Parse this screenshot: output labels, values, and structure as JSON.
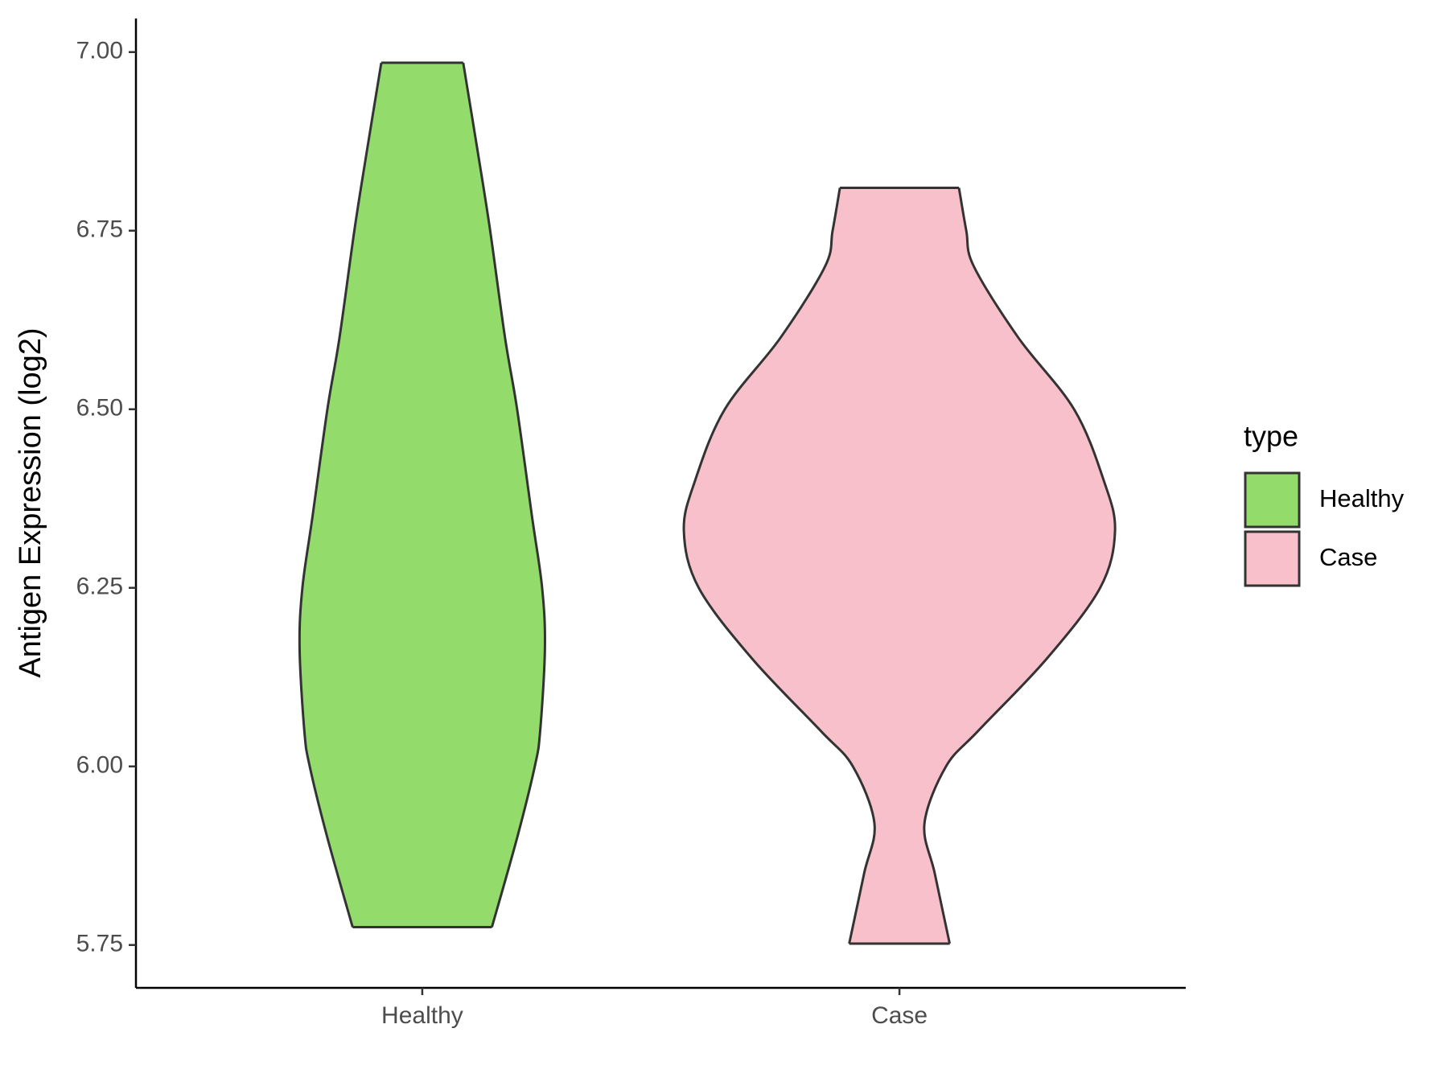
{
  "chart_data": {
    "type": "violin",
    "y_label": "Antigen Expression (log2)",
    "categories": [
      "Healthy",
      "Case"
    ],
    "legend_title": "type",
    "legend_position": "right",
    "ylim": [
      5.69,
      7.047
    ],
    "yticks": [
      {
        "value": 5.75,
        "label": "5.75"
      },
      {
        "value": 6,
        "label": "6.00"
      },
      {
        "value": 6.25,
        "label": "6.25"
      },
      {
        "value": 6.5,
        "label": "6.50"
      },
      {
        "value": 6.75,
        "label": "6.75"
      },
      {
        "value": 7,
        "label": "7.00"
      }
    ],
    "series": [
      {
        "name": "Healthy",
        "color": "#93dc6b",
        "y": [
          6.985,
          6.85,
          6.75,
          6.6,
          6.5,
          6.35,
          6.25,
          6.166,
          6.05,
          6.0,
          5.9,
          5.775
        ],
        "width": [
          0.19,
          0.263,
          0.315,
          0.384,
          0.44,
          0.509,
          0.556,
          0.569,
          0.547,
          0.522,
          0.44,
          0.323
        ]
      },
      {
        "name": "Case",
        "color": "#f8c0cb",
        "y": [
          6.81,
          6.75,
          6.7,
          6.6,
          6.5,
          6.4,
          6.33,
          6.25,
          6.15,
          6.05,
          6.0,
          5.92,
          5.85,
          5.752
        ],
        "width": [
          0.276,
          0.31,
          0.345,
          0.552,
          0.81,
          0.948,
          1,
          0.931,
          0.681,
          0.366,
          0.216,
          0.116,
          0.164,
          0.233
        ]
      }
    ]
  }
}
